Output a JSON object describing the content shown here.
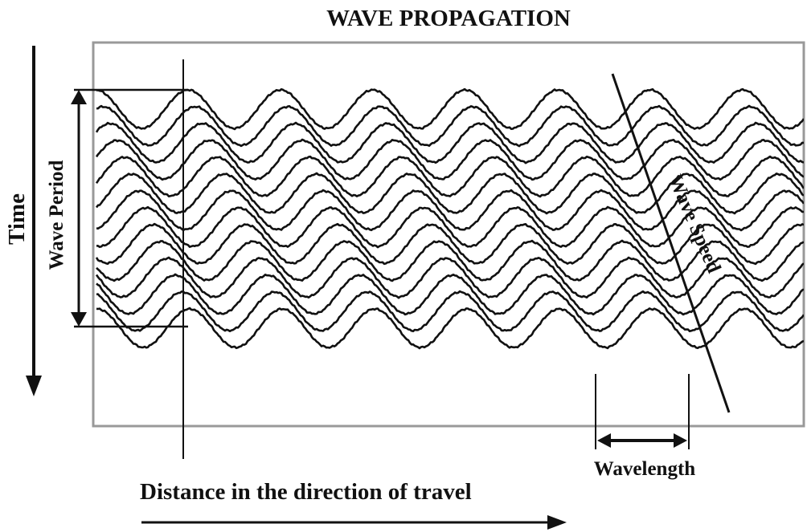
{
  "title": "WAVE PROPAGATION",
  "labels": {
    "time": "Time",
    "wave_period": "Wave Period",
    "wave_speed": "Wave Speed",
    "wavelength": "Wavelength",
    "distance": "Distance in the direction of travel"
  },
  "wave_field": {
    "trace_count": 14,
    "description_free": true
  },
  "colors": {
    "ink": "#111111",
    "frame": "#999999",
    "background": "#ffffff"
  }
}
